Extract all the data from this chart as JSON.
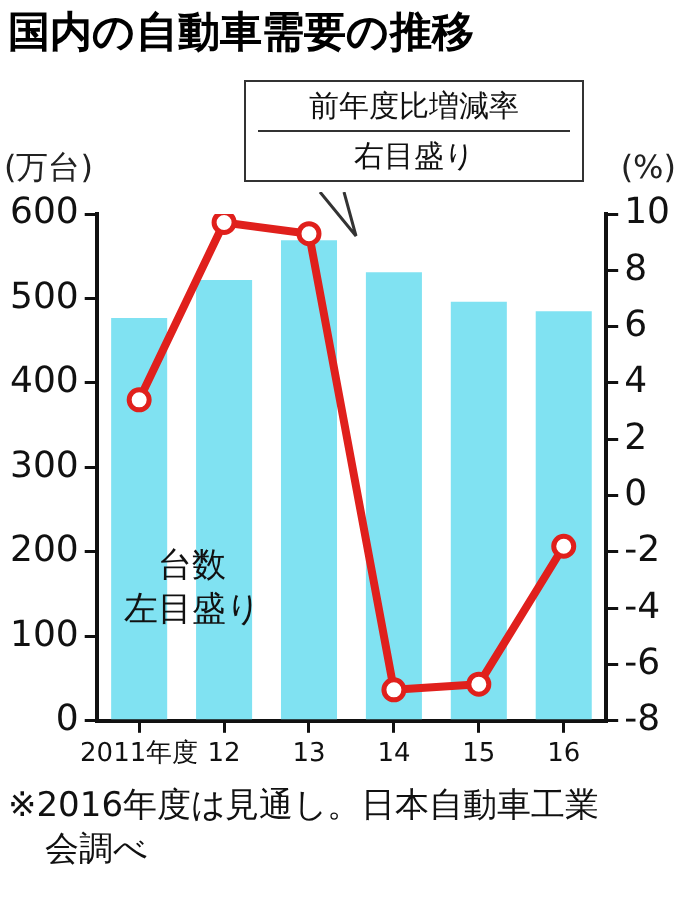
{
  "chart_data": {
    "type": "bar",
    "title": "国内の自動車需要の推移",
    "ylabel": "(万台)",
    "y2label": "(%)",
    "categories": [
      "2011年度",
      "12",
      "13",
      "14",
      "15",
      "16"
    ],
    "series": [
      {
        "type": "bar",
        "color": "#80e2f2",
        "values": [
          477,
          522,
          569,
          531,
          496,
          485
        ]
      },
      {
        "type": "line",
        "axis": "y2",
        "color": "#e0201c",
        "values": [
          3.4,
          9.7,
          9.3,
          -6.9,
          -6.7,
          -1.8
        ]
      }
    ],
    "ylim": [
      0,
      600
    ],
    "yticks": [
      0,
      100,
      200,
      300,
      400,
      500,
      600
    ],
    "y2lim": [
      -8,
      10
    ],
    "y2ticks": [
      -8,
      -6,
      -4,
      -2,
      0,
      2,
      4,
      6,
      8,
      10
    ],
    "grid": false,
    "legend": false,
    "marker": "circle",
    "line_style": "solid",
    "annotations": [
      "前年度比増減率",
      "右目盛り",
      "台数",
      "左目盛り",
      "※2016年度は見通し。日本自動車工業会調べ"
    ]
  }
}
